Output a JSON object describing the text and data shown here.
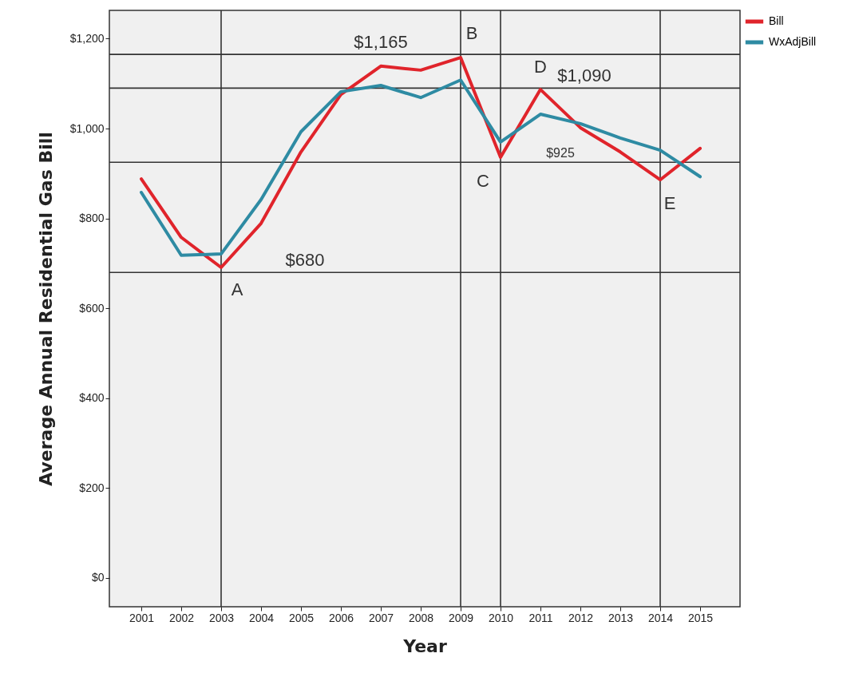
{
  "chart_data": {
    "type": "line",
    "xlabel": "Year",
    "ylabel": "Average Annual Residential Gas Bill",
    "x": [
      2001,
      2002,
      2003,
      2004,
      2005,
      2006,
      2007,
      2008,
      2009,
      2010,
      2011,
      2012,
      2013,
      2014,
      2015
    ],
    "series": [
      {
        "name": "Bill",
        "color": "#e0242b",
        "values": [
          888,
          758,
          691,
          789,
          948,
          1076,
          1139,
          1130,
          1158,
          936,
          1087,
          1002,
          948,
          886,
          956
        ]
      },
      {
        "name": "WxAdjBill",
        "color": "#2e8ba3",
        "values": [
          858,
          718,
          721,
          842,
          993,
          1082,
          1096,
          1069,
          1108,
          970,
          1032,
          1011,
          979,
          952,
          893
        ]
      }
    ],
    "xlim": [
      2000.2,
      2016
    ],
    "xticks": [
      2001,
      2002,
      2003,
      2004,
      2005,
      2006,
      2007,
      2008,
      2009,
      2010,
      2011,
      2012,
      2013,
      2014,
      2015
    ],
    "ylim": [
      -64,
      1263
    ],
    "yticks": [
      {
        "value": 0,
        "label": "$0"
      },
      {
        "value": 200,
        "label": "$200"
      },
      {
        "value": 400,
        "label": "$400"
      },
      {
        "value": 600,
        "label": "$600"
      },
      {
        "value": 800,
        "label": "$800"
      },
      {
        "value": 1000,
        "label": "$1,000"
      },
      {
        "value": 1200,
        "label": "$1,200"
      }
    ],
    "ref_lines": [
      {
        "axis": "y",
        "value": 1165,
        "label": "$1,165"
      },
      {
        "axis": "y",
        "value": 1090,
        "label": "$1,090"
      },
      {
        "axis": "y",
        "value": 925,
        "label": "$925"
      },
      {
        "axis": "y",
        "value": 680,
        "label": "$680"
      },
      {
        "axis": "x",
        "value": 2003
      },
      {
        "axis": "x",
        "value": 2009
      },
      {
        "axis": "x",
        "value": 2010
      },
      {
        "axis": "x",
        "value": 2014
      }
    ],
    "annotations": [
      {
        "text": "A",
        "x": 2003,
        "y": 691
      },
      {
        "text": "B",
        "x": 2009,
        "y": 1158
      },
      {
        "text": "C",
        "x": 2010,
        "y": 936
      },
      {
        "text": "D",
        "x": 2011,
        "y": 1087
      },
      {
        "text": "E",
        "x": 2014,
        "y": 886
      }
    ],
    "legend": "top right",
    "marker": "none",
    "line_style": "solid",
    "grid": false
  }
}
